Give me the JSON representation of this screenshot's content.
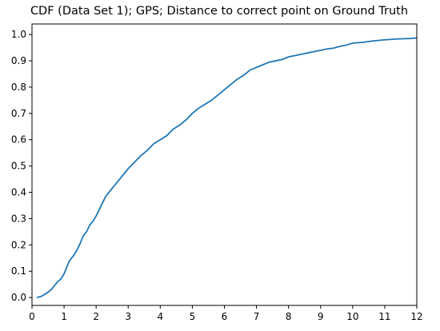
{
  "chart_data": {
    "type": "line",
    "title": "CDF (Data Set 1); GPS; Distance to correct point on Ground Truth",
    "xlabel": "",
    "ylabel": "",
    "xlim": [
      0,
      12
    ],
    "ylim": [
      -0.03,
      1.04
    ],
    "grid": false,
    "xticks": [
      "0",
      "1",
      "2",
      "3",
      "4",
      "5",
      "6",
      "7",
      "8",
      "9",
      "10",
      "11",
      "12"
    ],
    "yticks": [
      "0.0",
      "0.1",
      "0.2",
      "0.3",
      "0.4",
      "0.5",
      "0.6",
      "0.7",
      "0.8",
      "0.9",
      "1.0"
    ],
    "series": [
      {
        "color": "#1f77b4",
        "x": [
          0.15,
          0.3,
          0.5,
          0.6,
          0.7,
          0.8,
          0.9,
          1.0,
          1.1,
          1.15,
          1.2,
          1.3,
          1.4,
          1.5,
          1.6,
          1.7,
          1.8,
          1.9,
          2.0,
          2.1,
          2.2,
          2.3,
          2.4,
          2.5,
          2.6,
          2.7,
          2.8,
          2.9,
          3.0,
          3.2,
          3.4,
          3.6,
          3.8,
          4.0,
          4.2,
          4.4,
          4.6,
          4.8,
          5.0,
          5.2,
          5.4,
          5.6,
          5.8,
          6.0,
          6.2,
          6.4,
          6.6,
          6.8,
          7.0,
          7.2,
          7.4,
          7.6,
          7.8,
          8.0,
          8.2,
          8.4,
          8.6,
          8.8,
          9.0,
          9.2,
          9.4,
          9.6,
          9.8,
          10.0,
          10.3,
          10.6,
          11.0,
          11.4,
          11.8,
          12.0
        ],
        "y": [
          0.0,
          0.005,
          0.02,
          0.03,
          0.045,
          0.06,
          0.07,
          0.09,
          0.12,
          0.135,
          0.145,
          0.16,
          0.18,
          0.205,
          0.235,
          0.25,
          0.275,
          0.29,
          0.31,
          0.335,
          0.36,
          0.385,
          0.4,
          0.415,
          0.43,
          0.445,
          0.46,
          0.475,
          0.49,
          0.515,
          0.54,
          0.56,
          0.585,
          0.6,
          0.615,
          0.64,
          0.655,
          0.675,
          0.7,
          0.72,
          0.735,
          0.75,
          0.77,
          0.79,
          0.81,
          0.83,
          0.845,
          0.865,
          0.875,
          0.885,
          0.895,
          0.9,
          0.905,
          0.915,
          0.92,
          0.925,
          0.93,
          0.935,
          0.94,
          0.945,
          0.948,
          0.955,
          0.96,
          0.967,
          0.97,
          0.975,
          0.98,
          0.983,
          0.985,
          0.987
        ]
      }
    ]
  }
}
